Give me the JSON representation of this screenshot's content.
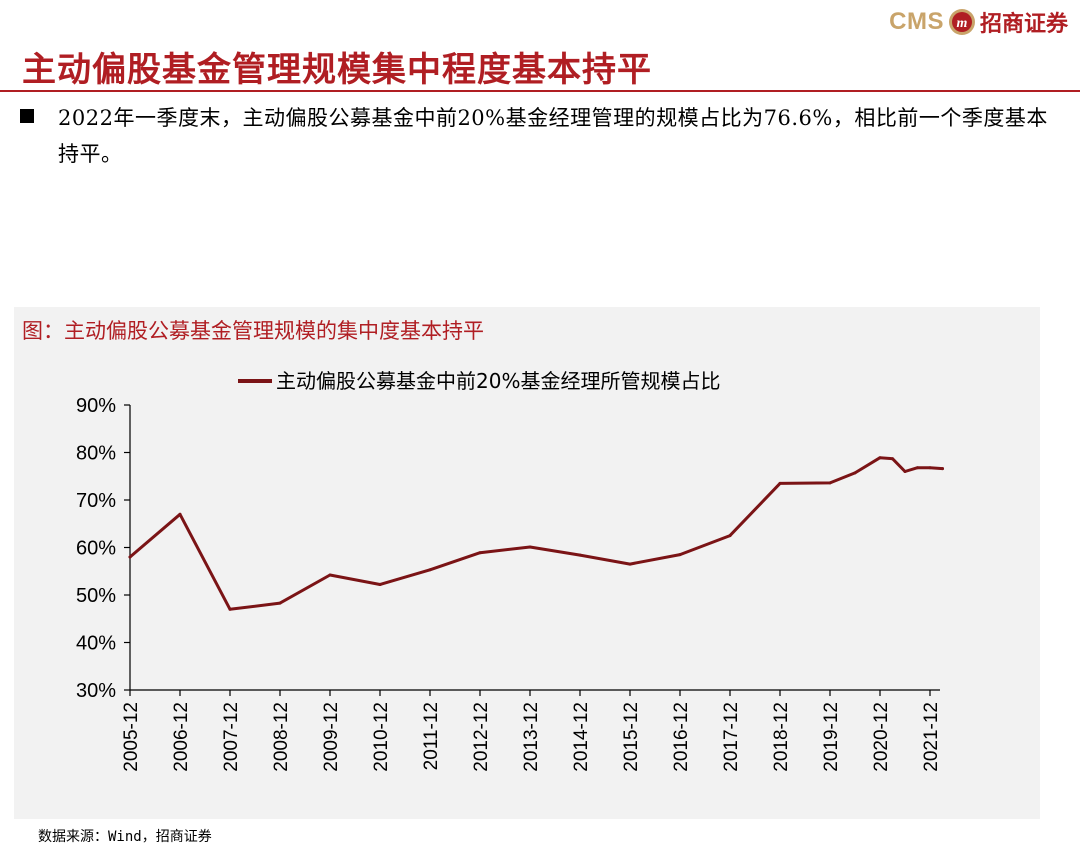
{
  "logo": {
    "text_en": "CMS",
    "text_cn": "招商证券",
    "badge_text": "m",
    "brand_color": "#b01e23",
    "gold_color": "#c9a46a"
  },
  "title": "主动偏股基金管理规模集中程度基本持平",
  "bullet": "2022年一季度末，主动偏股公募基金中前20%基金经理管理的规模占比为76.6%，相比前一个季度基本持平。",
  "figure_title": "图：主动偏股公募基金管理规模的集中度基本持平",
  "source": "数据来源：Wind，招商证券",
  "chart_data": {
    "type": "line",
    "title": "",
    "xlabel": "",
    "ylabel": "",
    "ylim": [
      0.3,
      0.9
    ],
    "yticks": [
      "30%",
      "40%",
      "50%",
      "60%",
      "70%",
      "80%",
      "90%"
    ],
    "categories": [
      "2005-12",
      "2006-12",
      "2007-12",
      "2008-12",
      "2009-12",
      "2010-12",
      "2011-12",
      "2012-12",
      "2013-12",
      "2014-12",
      "2015-12",
      "2016-12",
      "2017-12",
      "2018-12",
      "2019-12",
      "2020-12",
      "2021-12"
    ],
    "legend_position": "top",
    "series": [
      {
        "name": "主动偏股公募基金中前20%基金经理所管规模占比",
        "color": "#7b1416",
        "points": [
          [
            "2005-12",
            0.58
          ],
          [
            "2006-12",
            0.67
          ],
          [
            "2007-12",
            0.47
          ],
          [
            "2008-12",
            0.483
          ],
          [
            "2009-12",
            0.542
          ],
          [
            "2010-12",
            0.522
          ],
          [
            "2011-12",
            0.553
          ],
          [
            "2012-12",
            0.589
          ],
          [
            "2013-12",
            0.601
          ],
          [
            "2014-12",
            0.584
          ],
          [
            "2015-12",
            0.565
          ],
          [
            "2016-12",
            0.585
          ],
          [
            "2017-12",
            0.625
          ],
          [
            "2018-12",
            0.735
          ],
          [
            "2019-12",
            0.736
          ],
          [
            "2020-06",
            0.757
          ],
          [
            "2020-12",
            0.789
          ],
          [
            "2021-03",
            0.787
          ],
          [
            "2021-06",
            0.76
          ],
          [
            "2021-09",
            0.768
          ],
          [
            "2021-12",
            0.768
          ],
          [
            "2022-03",
            0.766
          ]
        ]
      }
    ]
  }
}
